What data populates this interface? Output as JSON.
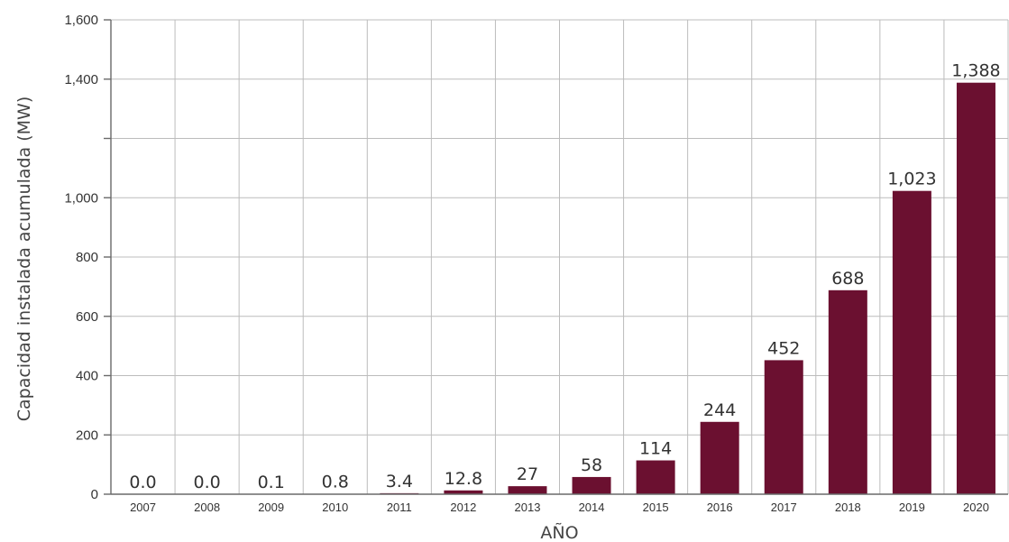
{
  "chart_data": {
    "type": "bar",
    "title": "",
    "xlabel": "AÑO",
    "ylabel": "Capacidad instalada acumulada (MW)",
    "categories": [
      "2007",
      "2008",
      "2009",
      "2010",
      "2011",
      "2012",
      "2013",
      "2014",
      "2015",
      "2016",
      "2017",
      "2018",
      "2019",
      "2020"
    ],
    "values": [
      0.0,
      0.0,
      0.1,
      0.8,
      3.4,
      12.8,
      27,
      58,
      114,
      244,
      452,
      688,
      1023,
      1388
    ],
    "data_labels": [
      "0.0",
      "0.0",
      "0.1",
      "0.8",
      "3.4",
      "12.8",
      "27",
      "58",
      "114",
      "244",
      "452",
      "688",
      "1,023",
      "1,388"
    ],
    "ylim": [
      0,
      1600
    ],
    "yticks": [
      0,
      200,
      400,
      600,
      800,
      1000,
      1200,
      1400,
      1600
    ],
    "ytick_labels": [
      "0",
      "200",
      "400",
      "600",
      "800",
      "1,000",
      "",
      "1,400",
      "1,600"
    ],
    "grid": true,
    "bar_color": "#6b1030"
  }
}
